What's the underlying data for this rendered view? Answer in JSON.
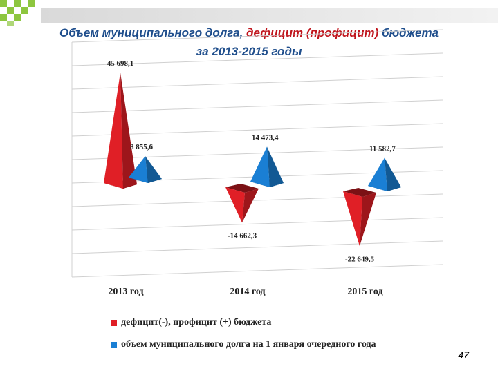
{
  "title": {
    "part1": "Объем муниципального долга, ",
    "part2": "дефицит (профицит)",
    "part3": " бюджета",
    "line2": "за 2013-2015 годы"
  },
  "chart_data": {
    "type": "bar",
    "categories": [
      "2013 год",
      "2014 год",
      "2015 год"
    ],
    "series": [
      {
        "name": "дефицит(-), профицит (+) бюджета",
        "color": "#e01f26",
        "values": [
          45698.1,
          -14662.3,
          -22649.5
        ],
        "labels": [
          "45 698,1",
          "-14 662,3",
          "-22 649,5"
        ]
      },
      {
        "name": "объем муниципального долга на 1 января очередного года",
        "color": "#1a7fd4",
        "values": [
          8855.6,
          14473.4,
          11582.7
        ],
        "labels": [
          "8 855,6",
          "14 473,4",
          "11 582,7"
        ]
      }
    ],
    "grid": true,
    "legend": "bottom"
  },
  "page_number": "47",
  "colors": {
    "title_blue": "#1f4e8c",
    "title_red": "#c0141c",
    "deco_green": "#8dc63f"
  }
}
